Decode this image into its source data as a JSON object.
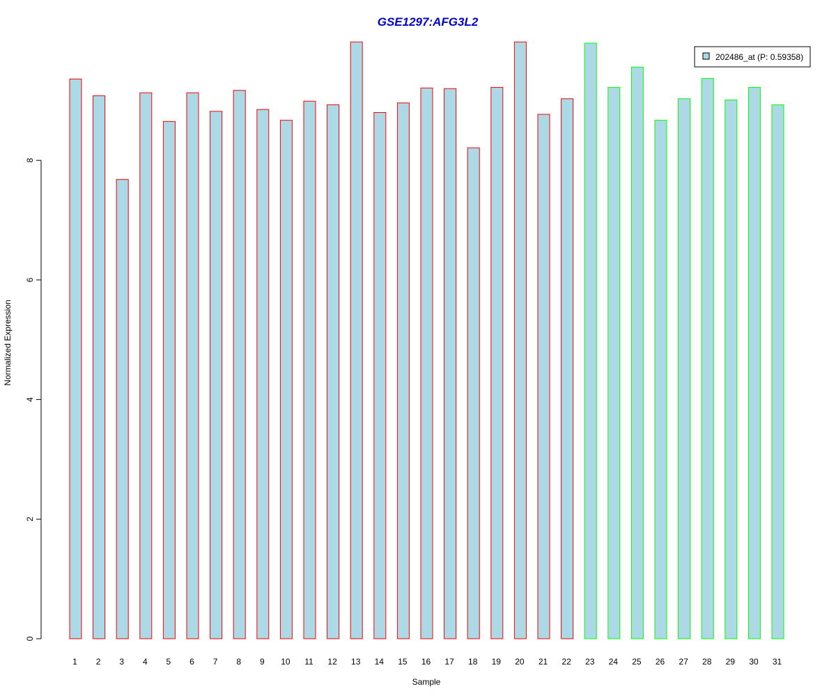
{
  "chart_data": {
    "type": "bar",
    "title": "GSE1297:AFG3L2",
    "xlabel": "Sample",
    "ylabel": "Normalized Expression",
    "ylim": [
      0,
      10
    ],
    "yticks": [
      "0",
      "2",
      "4",
      "6",
      "8"
    ],
    "categories": [
      "1",
      "2",
      "3",
      "4",
      "5",
      "6",
      "7",
      "8",
      "9",
      "10",
      "11",
      "12",
      "13",
      "14",
      "15",
      "16",
      "17",
      "18",
      "19",
      "20",
      "21",
      "22",
      "23",
      "24",
      "25",
      "26",
      "27",
      "28",
      "29",
      "30",
      "31"
    ],
    "values": [
      9.36,
      9.08,
      7.68,
      9.13,
      8.65,
      9.13,
      8.82,
      9.17,
      8.85,
      8.67,
      8.99,
      8.93,
      9.98,
      8.8,
      8.96,
      9.21,
      9.2,
      8.21,
      9.22,
      9.98,
      8.77,
      9.03,
      9.96,
      9.22,
      9.56,
      8.67,
      9.03,
      9.37,
      9.01,
      9.22,
      8.93
    ],
    "groups": [
      "red",
      "red",
      "red",
      "red",
      "red",
      "red",
      "red",
      "red",
      "red",
      "red",
      "red",
      "red",
      "red",
      "red",
      "red",
      "red",
      "red",
      "red",
      "red",
      "red",
      "red",
      "red",
      "green",
      "green",
      "green",
      "green",
      "green",
      "green",
      "green",
      "green",
      "green"
    ],
    "grid": false,
    "legend": {
      "placement": "top-right",
      "entries": [
        {
          "label": "202486_at (P: 0.59358)",
          "color": "#add8e6"
        }
      ]
    },
    "colors": {
      "bar_fill": "#add8e6",
      "group_red": "#ff0000",
      "group_green": "#00ff00",
      "title": "#0000cc"
    }
  }
}
